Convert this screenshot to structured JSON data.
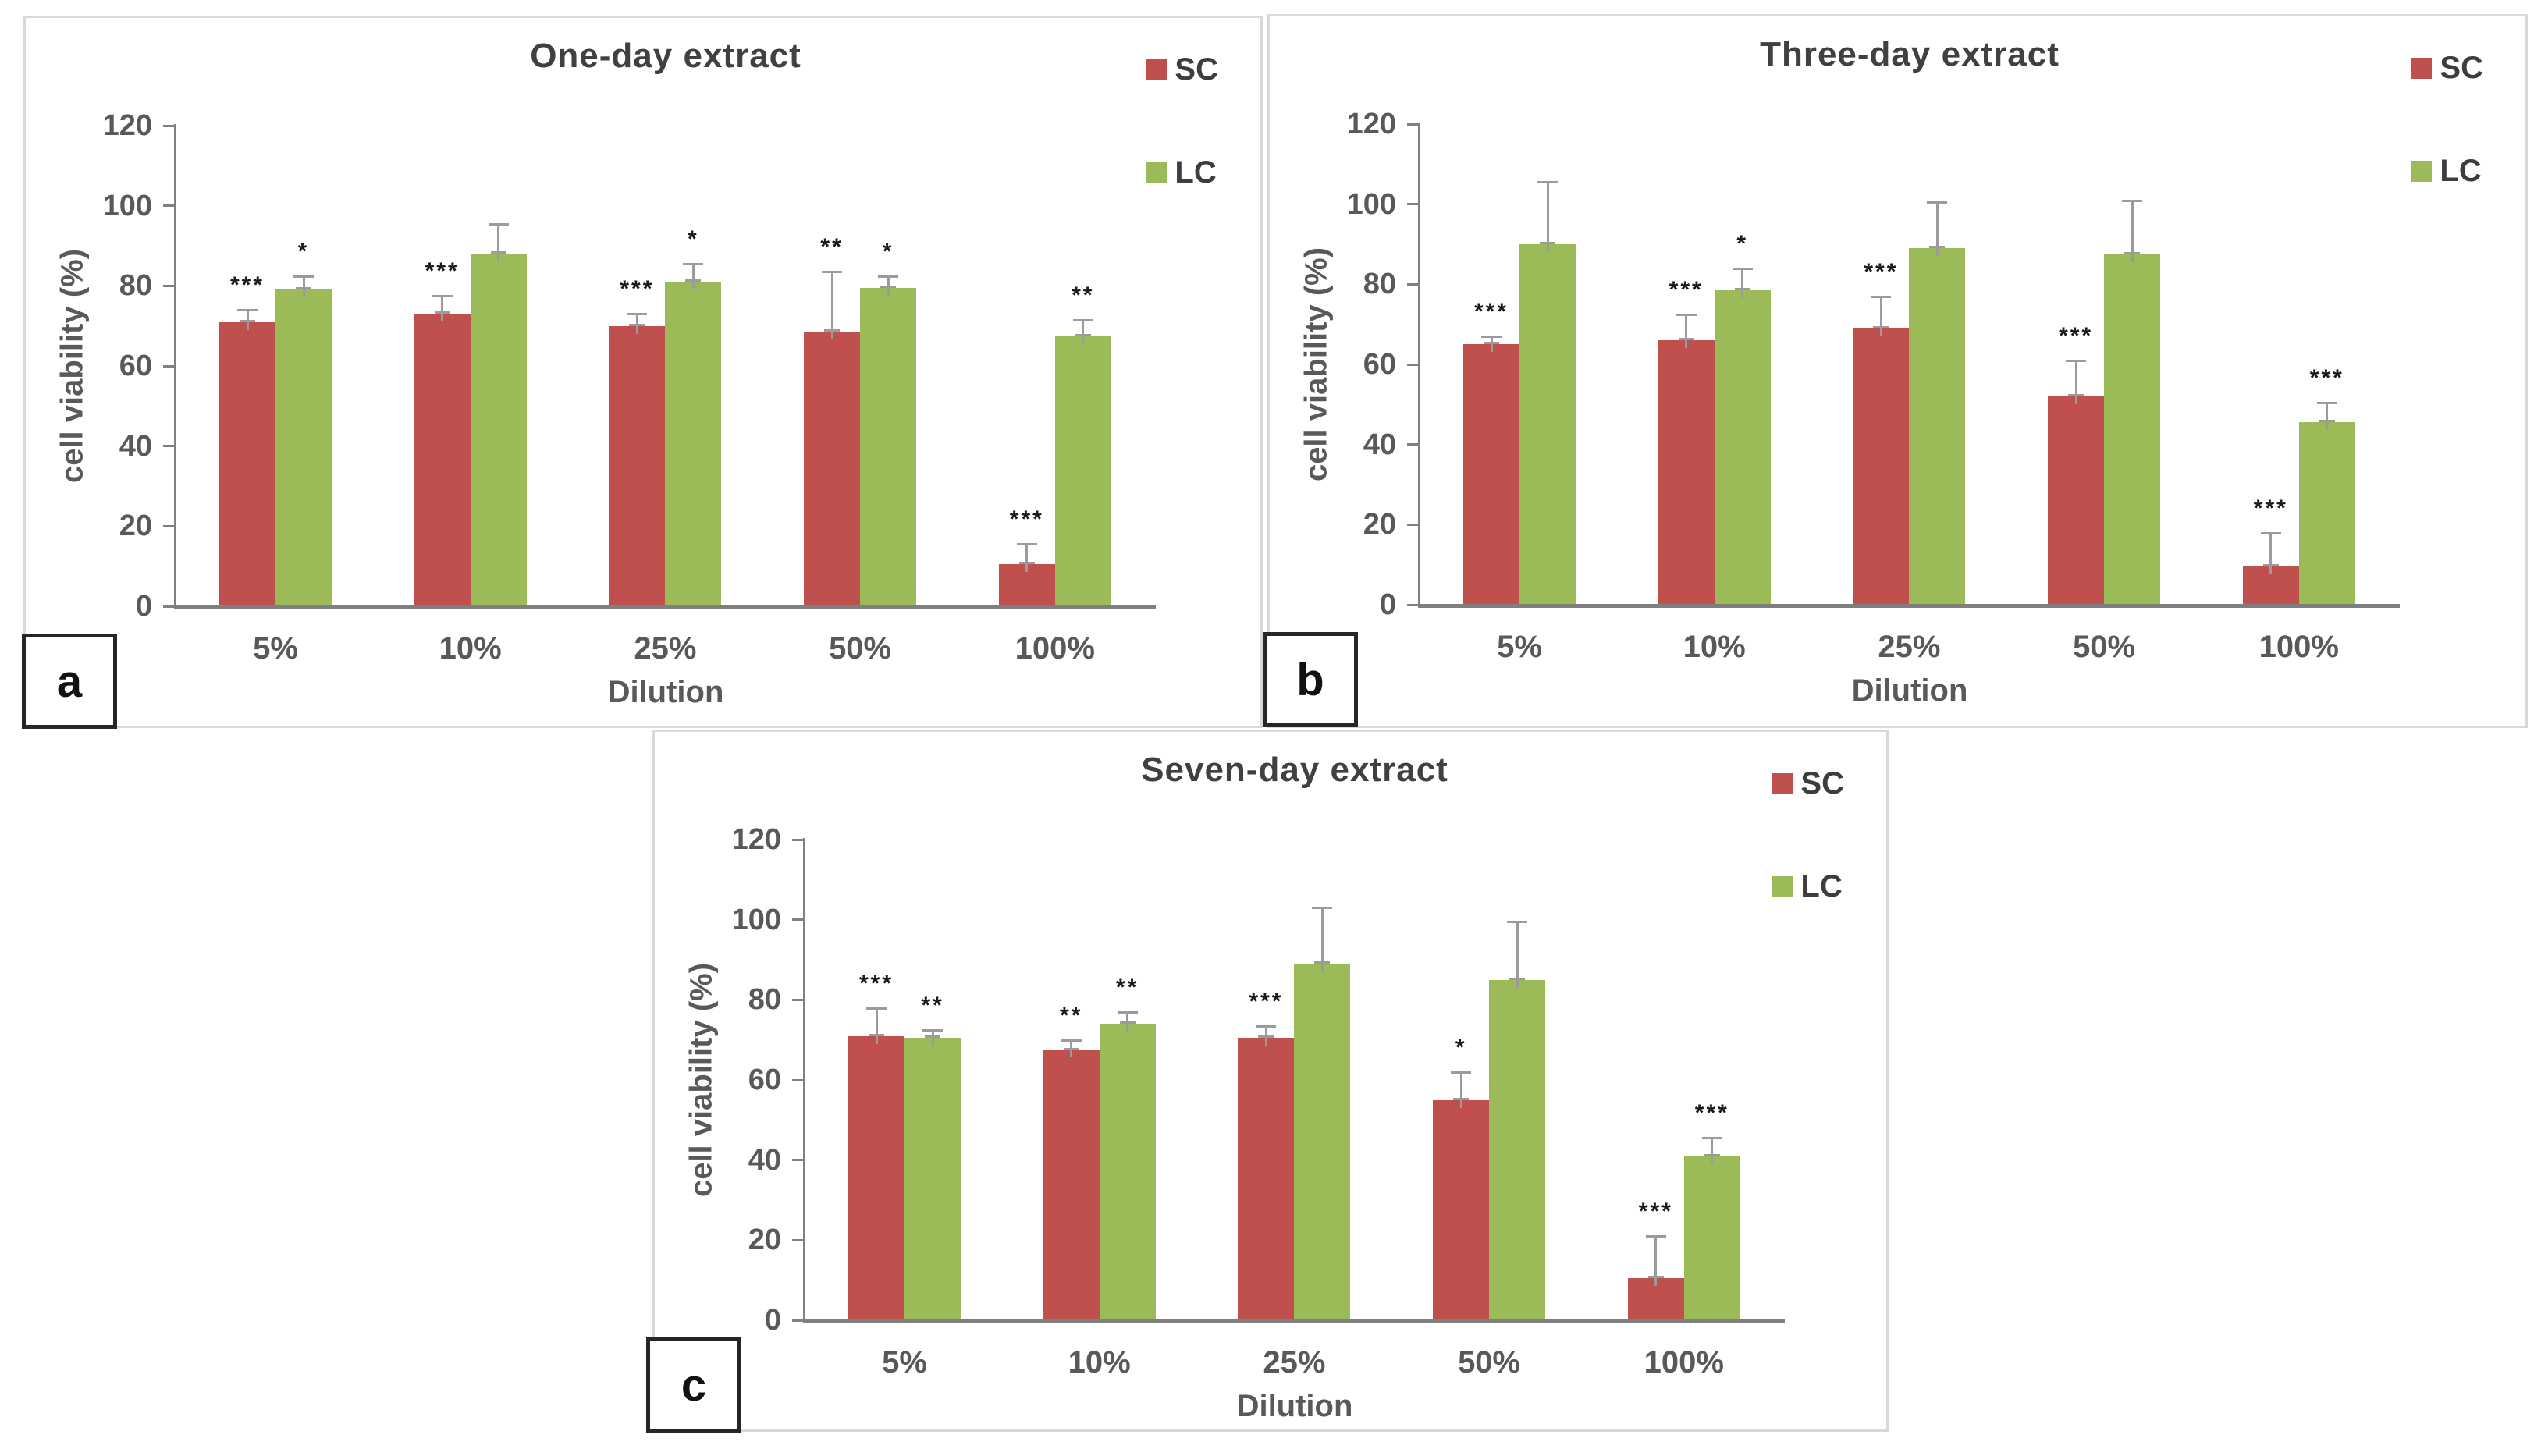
{
  "colors": {
    "sc": "#c0504d",
    "lc": "#9bbb59",
    "axis": "#7f7f7f",
    "error_bar": "#9b9b9b",
    "tick_label": "#595959",
    "title": "#404040",
    "panel_border": "#d9d9d9",
    "sig_marker": "#1a1a1a"
  },
  "panels": [
    {
      "letter": "a",
      "title": "One-day extract",
      "ylabel": "cell viability (%)",
      "xlabel": "Dilution",
      "legend": [
        {
          "label": "SC"
        },
        {
          "label": "LC"
        }
      ]
    },
    {
      "letter": "b",
      "title": "Three-day extract",
      "ylabel": "cell viability (%)",
      "xlabel": "Dilution",
      "legend": [
        {
          "label": "SC"
        },
        {
          "label": "LC"
        }
      ]
    },
    {
      "letter": "c",
      "title": "Seven-day extract",
      "ylabel": "cell viability (%)",
      "xlabel": "Dilution",
      "legend": [
        {
          "label": "SC"
        },
        {
          "label": "LC"
        }
      ]
    }
  ],
  "chart_data": [
    {
      "type": "bar",
      "title": "One-day extract",
      "xlabel": "Dilution",
      "ylabel": "cell viability (%)",
      "categories": [
        "5%",
        "10%",
        "25%",
        "50%",
        "100%"
      ],
      "ylim": [
        0,
        120
      ],
      "yticks": [
        0,
        20,
        40,
        60,
        80,
        100,
        120
      ],
      "grid": false,
      "legend_position": "top-right",
      "series": [
        {
          "name": "SC",
          "color": "#c0504d",
          "values": [
            71,
            73,
            70,
            68.5,
            10.5
          ],
          "errors": [
            3,
            4.5,
            3,
            15,
            5
          ],
          "sig": [
            "***",
            "***",
            "***",
            "**",
            "***"
          ]
        },
        {
          "name": "LC",
          "color": "#9bbb59",
          "values": [
            79,
            88,
            81,
            79.5,
            67.5
          ],
          "errors": [
            3.5,
            7.5,
            4.5,
            3,
            4
          ],
          "sig": [
            "*",
            "",
            "*",
            "*",
            "**"
          ]
        }
      ]
    },
    {
      "type": "bar",
      "title": "Three-day extract",
      "xlabel": "Dilution",
      "ylabel": "cell viability (%)",
      "categories": [
        "5%",
        "10%",
        "25%",
        "50%",
        "100%"
      ],
      "ylim": [
        0,
        120
      ],
      "yticks": [
        0,
        20,
        40,
        60,
        80,
        100,
        120
      ],
      "grid": false,
      "legend_position": "top-right",
      "series": [
        {
          "name": "SC",
          "color": "#c0504d",
          "values": [
            65,
            66,
            69,
            52,
            9.5
          ],
          "errors": [
            2,
            6.5,
            8,
            9,
            8.5
          ],
          "sig": [
            "***",
            "***",
            "***",
            "***",
            "***"
          ]
        },
        {
          "name": "LC",
          "color": "#9bbb59",
          "values": [
            90,
            78.5,
            89,
            87.5,
            45.5
          ],
          "errors": [
            15.5,
            5.5,
            11.5,
            13.5,
            5
          ],
          "sig": [
            "",
            "*",
            "",
            "",
            "***"
          ]
        }
      ]
    },
    {
      "type": "bar",
      "title": "Seven-day extract",
      "xlabel": "Dilution",
      "ylabel": "cell viability (%)",
      "categories": [
        "5%",
        "10%",
        "25%",
        "50%",
        "100%"
      ],
      "ylim": [
        0,
        120
      ],
      "yticks": [
        0,
        20,
        40,
        60,
        80,
        100,
        120
      ],
      "grid": false,
      "legend_position": "top-right",
      "series": [
        {
          "name": "SC",
          "color": "#c0504d",
          "values": [
            71,
            67.5,
            70.5,
            55,
            10.5
          ],
          "errors": [
            7,
            2.5,
            3,
            7,
            10.5
          ],
          "sig": [
            "***",
            "**",
            "***",
            "*",
            "***"
          ]
        },
        {
          "name": "LC",
          "color": "#9bbb59",
          "values": [
            70.5,
            74,
            89,
            85,
            41
          ],
          "errors": [
            2,
            3,
            14,
            14.5,
            4.5
          ],
          "sig": [
            "**",
            "**",
            "",
            "",
            "***"
          ]
        }
      ]
    }
  ]
}
